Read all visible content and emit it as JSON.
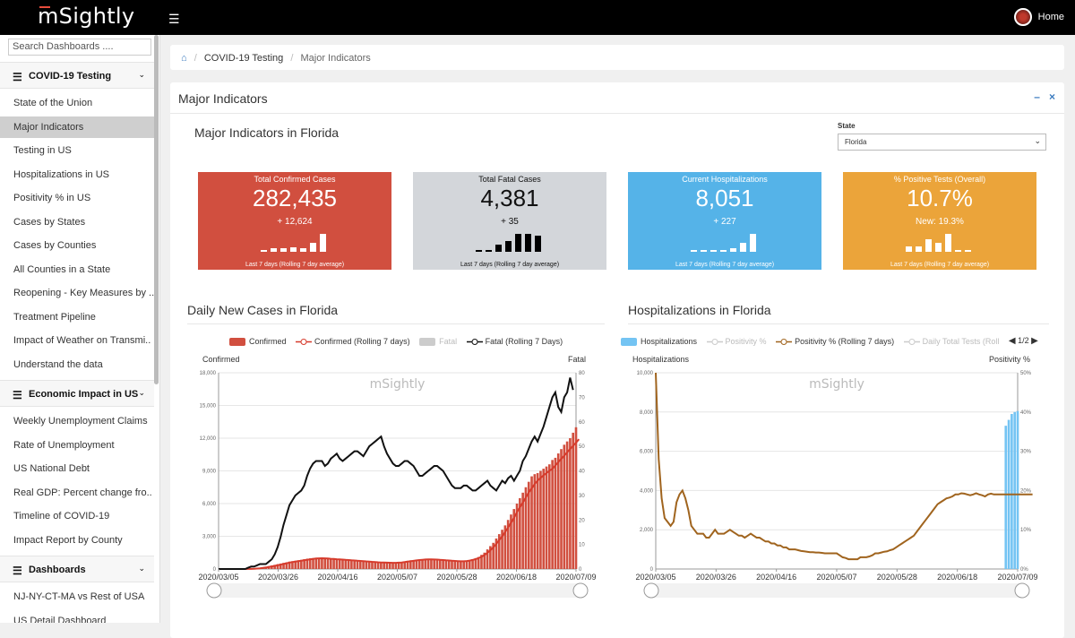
{
  "app": {
    "logo": "mSightly",
    "home_label": "Home"
  },
  "sidebar": {
    "search_placeholder": "Search Dashboards ....",
    "sections": [
      {
        "label": "COVID-19 Testing",
        "items": [
          "State of the Union",
          "Major Indicators",
          "Testing in US",
          "Hospitalizations in US",
          "Positivity % in US",
          "Cases by States",
          "Cases by Counties",
          "All Counties in a State",
          "Reopening - Key Measures by ..",
          "Treatment Pipeline",
          "Impact of Weather on Transmi..",
          "Understand the data"
        ]
      },
      {
        "label": "Economic Impact in US",
        "items": [
          "Weekly Unemployment Claims",
          "Rate of Unemployment",
          "US National Debt",
          "Real GDP: Percent change fro..",
          "Timeline of COVID-19",
          "Impact Report by County"
        ]
      },
      {
        "label": "Dashboards",
        "items": [
          "NJ-NY-CT-MA vs Rest of USA",
          "US Detail Dashboard"
        ]
      }
    ],
    "active_item": "Major Indicators"
  },
  "breadcrumb": {
    "items": [
      "COVID-19 Testing",
      "Major Indicators"
    ]
  },
  "panel": {
    "title": "Major Indicators",
    "subtitle": "Major Indicators in Florida",
    "state_label": "State",
    "state_value": "Florida"
  },
  "kpis": [
    {
      "title": "Total Confirmed Cases",
      "value": "282,435",
      "delta": "+ 12,624",
      "footer": "Last 7 days (Rolling 7 day average)",
      "color": "#d14f3f",
      "spark": [
        0.05,
        0.2,
        0.2,
        0.25,
        0.2,
        0.5,
        1.0
      ]
    },
    {
      "title": "Total Fatal Cases",
      "value": "4,381",
      "delta": "+ 35",
      "footer": "Last 7 days (Rolling 7 day average)",
      "color": "#d3d6da",
      "spark": [
        0.05,
        0.05,
        0.4,
        0.6,
        1.0,
        1.0,
        0.9
      ]
    },
    {
      "title": "Current Hospitalizations",
      "value": "8,051",
      "delta": "+ 227",
      "footer": "Last 7 days (Rolling 7 day average)",
      "color": "#55b3e8",
      "spark": [
        0,
        0,
        0,
        0.05,
        0.2,
        0.5,
        1.0
      ]
    },
    {
      "title": "% Positive Tests (Overall)",
      "value": "10.7%",
      "delta": "New: 19.3%",
      "footer": "Last 7 days (Rolling 7 day average)",
      "color": "#eba43a",
      "spark": [
        0.3,
        0.3,
        0.7,
        0.5,
        1.0,
        0.05,
        0.05
      ]
    }
  ],
  "charts": {
    "cases": {
      "title": "Daily New Cases in Florida",
      "legend": [
        "Confirmed",
        "Confirmed (Rolling 7 days)",
        "Fatal",
        "Fatal (Rolling 7 Days)"
      ],
      "left_axis_title": "Confirmed",
      "right_axis_title": "Fatal",
      "watermark": "mSightly",
      "left_ticks": [
        "0",
        "3,000",
        "6,000",
        "9,000",
        "12,000",
        "15,000",
        "18,000"
      ],
      "right_ticks": [
        "0",
        "10",
        "20",
        "30",
        "40",
        "50",
        "60",
        "70",
        "80"
      ],
      "x_ticks": [
        "2020/03/05",
        "2020/03/26",
        "2020/04/16",
        "2020/05/07",
        "2020/05/28",
        "2020/06/18",
        "2020/07/09"
      ]
    },
    "hosp": {
      "title": "Hospitalizations in Florida",
      "legend": [
        "Hospitalizations",
        "Positivity %",
        "Positivity % (Rolling 7 days)",
        "Daily Total Tests (Roll"
      ],
      "pager": "1/2",
      "left_axis_title": "Hospitalizations",
      "right_axis_title": "Positivity %",
      "watermark": "mSightly",
      "left_ticks": [
        "0",
        "2,000",
        "4,000",
        "6,000",
        "8,000",
        "10,000"
      ],
      "right_ticks": [
        "0%",
        "10%",
        "20%",
        "30%",
        "40%",
        "50%"
      ],
      "x_ticks": [
        "2020/03/05",
        "2020/03/26",
        "2020/04/16",
        "2020/05/07",
        "2020/05/28",
        "2020/06/18",
        "2020/07/09"
      ]
    }
  },
  "chart_data": [
    {
      "type": "bar",
      "title": "Daily New Cases in Florida",
      "xlabel": "",
      "ylabel": "Confirmed",
      "y2label": "Fatal",
      "ylim": [
        0,
        18000
      ],
      "y2lim": [
        0,
        80
      ],
      "x_range": [
        "2020/03/05",
        "2020/07/09"
      ],
      "series": [
        {
          "name": "Confirmed",
          "kind": "bar",
          "color": "#d14f3f",
          "values": [
            0,
            0,
            0,
            0,
            0,
            0,
            0,
            0,
            0,
            0,
            10,
            20,
            40,
            60,
            100,
            150,
            200,
            260,
            320,
            380,
            450,
            500,
            560,
            620,
            680,
            720,
            760,
            800,
            840,
            900,
            950,
            980,
            1000,
            1020,
            1000,
            980,
            950,
            920,
            900,
            880,
            860,
            840,
            820,
            800,
            780,
            760,
            740,
            720,
            700,
            680,
            660,
            640,
            620,
            600,
            580,
            560,
            560,
            560,
            560,
            560,
            560,
            600,
            650,
            700,
            750,
            800,
            820,
            840,
            860,
            880,
            900,
            900,
            880,
            860,
            840,
            820,
            800,
            780,
            760,
            740,
            720,
            700,
            700,
            720,
            760,
            820,
            900,
            1000,
            1100,
            1300,
            1500,
            1800,
            2100,
            2400,
            2800,
            3200,
            3600,
            4000,
            4500,
            5000,
            5500,
            6000,
            6500,
            7000,
            7500,
            8000,
            8500,
            8700,
            8800,
            9000,
            9200,
            9400,
            9600,
            10000,
            10200,
            10600,
            11000,
            11400,
            11700,
            12000,
            12500,
            13000
          ]
        },
        {
          "name": "Confirmed (Rolling 7 days)",
          "kind": "line",
          "color": "#d63b2c",
          "values": [
            0,
            0,
            0,
            0,
            0,
            0,
            0,
            0,
            0,
            0,
            5,
            10,
            20,
            40,
            60,
            100,
            140,
            190,
            240,
            290,
            340,
            400,
            460,
            520,
            580,
            630,
            680,
            720,
            760,
            800,
            850,
            890,
            930,
            960,
            980,
            990,
            980,
            960,
            940,
            920,
            900,
            880,
            860,
            840,
            820,
            800,
            780,
            760,
            740,
            720,
            700,
            680,
            660,
            640,
            620,
            600,
            590,
            580,
            575,
            570,
            570,
            580,
            600,
            630,
            670,
            710,
            750,
            790,
            820,
            850,
            870,
            880,
            880,
            870,
            860,
            840,
            820,
            800,
            780,
            760,
            740,
            720,
            710,
            710,
            730,
            770,
            830,
            900,
            1000,
            1120,
            1280,
            1480,
            1720,
            2000,
            2300,
            2650,
            3000,
            3400,
            3800,
            4250,
            4700,
            5200,
            5650,
            6100,
            6550,
            7000,
            7400,
            7800,
            8100,
            8350,
            8600,
            8800,
            9000,
            9200,
            9500,
            9800,
            10100,
            10400,
            10700,
            11000,
            11300,
            11600,
            11900
          ]
        },
        {
          "name": "Fatal (Rolling 7 Days)",
          "kind": "line",
          "color": "#111111",
          "axis": "right",
          "values": [
            0,
            0,
            0,
            0,
            0,
            0,
            0,
            0,
            0,
            0,
            0.5,
            1,
            1,
            1.5,
            2,
            2,
            2,
            3,
            4,
            6,
            9,
            13,
            18,
            22,
            26,
            28,
            30,
            31,
            32,
            34,
            38,
            41,
            43,
            44,
            44,
            44,
            42,
            43,
            45,
            46,
            47,
            45,
            44,
            45,
            46,
            47,
            48,
            48,
            47,
            46,
            48,
            50,
            51,
            52,
            53,
            54,
            50,
            47,
            45,
            43,
            42,
            42,
            43,
            44,
            44,
            43,
            42,
            40,
            38,
            38,
            39,
            40,
            41,
            42,
            42,
            41,
            40,
            38,
            36,
            34,
            33,
            33,
            33,
            34,
            34,
            33,
            32,
            32,
            33,
            34,
            35,
            36,
            34,
            33,
            32,
            34,
            36,
            35,
            37,
            38,
            36,
            38,
            40,
            44,
            46,
            49,
            52,
            54,
            52,
            55,
            58,
            62,
            66,
            70,
            72,
            66,
            64,
            70,
            72,
            78,
            73
          ]
        }
      ],
      "fatal_bar_color": "#cccccc"
    },
    {
      "type": "line",
      "title": "Hospitalizations in Florida",
      "xlabel": "",
      "ylabel": "Hospitalizations",
      "y2label": "Positivity %",
      "ylim": [
        0,
        10000
      ],
      "y2lim": [
        0,
        50
      ],
      "x_range": [
        "2020/03/05",
        "2020/07/09"
      ],
      "series": [
        {
          "name": "Hospitalizations",
          "kind": "bar",
          "color": "#74c4f3",
          "values": [
            0,
            0,
            0,
            0,
            0,
            0,
            0,
            0,
            0,
            0,
            0,
            0,
            0,
            0,
            0,
            0,
            0,
            0,
            0,
            0,
            0,
            0,
            0,
            0,
            0,
            0,
            0,
            0,
            0,
            0,
            0,
            0,
            0,
            0,
            0,
            0,
            0,
            0,
            0,
            0,
            0,
            0,
            0,
            0,
            0,
            0,
            0,
            0,
            0,
            0,
            0,
            0,
            0,
            0,
            0,
            0,
            0,
            0,
            0,
            0,
            0,
            0,
            0,
            0,
            0,
            0,
            0,
            0,
            0,
            0,
            0,
            0,
            0,
            0,
            0,
            0,
            0,
            0,
            0,
            0,
            0,
            0,
            0,
            0,
            0,
            0,
            0,
            0,
            0,
            0,
            0,
            0,
            0,
            0,
            0,
            0,
            0,
            0,
            0,
            0,
            0,
            0,
            0,
            0,
            0,
            0,
            0,
            0,
            0,
            0,
            0,
            0,
            0,
            0,
            0,
            0,
            0,
            0,
            7300,
            7600,
            7900,
            8000,
            8051
          ]
        },
        {
          "name": "Positivity % (Rolling 7 days)",
          "kind": "line",
          "color": "#a0641e",
          "axis": "right",
          "values": [
            50,
            28,
            18,
            13,
            12,
            11,
            12,
            17,
            19,
            20,
            18,
            15,
            11,
            10,
            9,
            9,
            9,
            8,
            8,
            9,
            10,
            9,
            9,
            9,
            9.5,
            10,
            9.5,
            9,
            8.5,
            8.5,
            8,
            8.5,
            9,
            8.5,
            8,
            8,
            7.5,
            7,
            7,
            6.5,
            6.5,
            6,
            6,
            5.5,
            5.5,
            5,
            5,
            5,
            4.8,
            4.6,
            4.5,
            4.4,
            4.3,
            4.3,
            4.2,
            4.2,
            4.1,
            4,
            4,
            4,
            4,
            4,
            3.5,
            3,
            2.8,
            2.5,
            2.5,
            2.5,
            2.5,
            3,
            3,
            3,
            3.2,
            3.5,
            4,
            4,
            4.2,
            4.4,
            4.5,
            4.8,
            5,
            5.5,
            6,
            6.5,
            7,
            7.5,
            8,
            8.5,
            9.5,
            10.5,
            11.5,
            12.5,
            13.5,
            14.5,
            15.5,
            16.5,
            17,
            17.5,
            18,
            18.2,
            18.5,
            19,
            19,
            19.3,
            19.2,
            19,
            18.8,
            19,
            19.3,
            19,
            18.8,
            18.5,
            19,
            19.2,
            19,
            19,
            19,
            19,
            19,
            19,
            19,
            19,
            19,
            19,
            19,
            19,
            19,
            19
          ]
        }
      ]
    }
  ]
}
